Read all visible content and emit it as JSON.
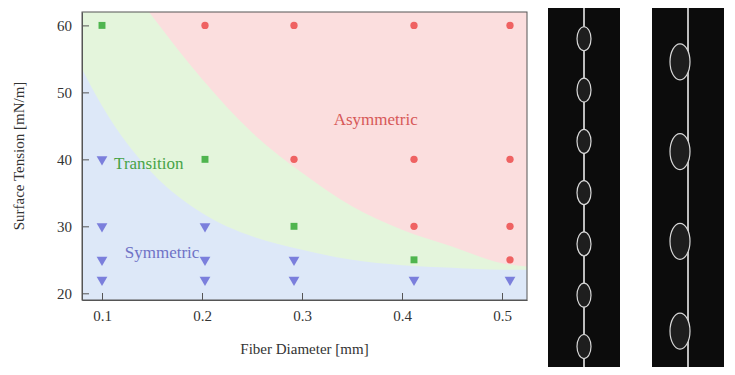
{
  "chart_data": {
    "type": "scatter",
    "x_label": "Fiber Diameter [mm]",
    "y_label": "Surface Tension [mN/m]",
    "xlim": [
      0.08,
      0.525
    ],
    "ylim": [
      19,
      62
    ],
    "xticks": [
      0.1,
      0.2,
      0.3,
      0.4,
      0.5
    ],
    "yticks": [
      20,
      30,
      40,
      50,
      60
    ],
    "series": [
      {
        "name": "Symmetric",
        "color": "#7b7fdc",
        "marker": "triangle-down",
        "x": [
          0.1,
          0.1,
          0.1,
          0.1,
          0.203,
          0.203,
          0.203,
          0.292,
          0.292,
          0.412,
          0.508
        ],
        "values": [
          40,
          30,
          25,
          22,
          30,
          25,
          22,
          25,
          22,
          22,
          22
        ]
      },
      {
        "name": "Transition",
        "color": "#4fb54f",
        "marker": "square",
        "x": [
          0.1,
          0.203,
          0.292,
          0.412
        ],
        "values": [
          60,
          40,
          30,
          25
        ]
      },
      {
        "name": "Asymmetric",
        "color": "#ef6262",
        "marker": "circle",
        "x": [
          0.203,
          0.292,
          0.292,
          0.412,
          0.412,
          0.412,
          0.508,
          0.508,
          0.508,
          0.508
        ],
        "values": [
          60,
          60,
          40,
          60,
          40,
          30,
          60,
          40,
          30,
          25
        ]
      }
    ],
    "boundaries": [
      {
        "x": [
          0.08,
          0.1,
          0.15,
          0.2,
          0.25,
          0.3,
          0.35,
          0.4,
          0.45,
          0.5,
          0.525
        ],
        "y": [
          53.5,
          48,
          38,
          32,
          28.5,
          26.5,
          25,
          24.2,
          23.8,
          23.5,
          23.5
        ]
      },
      {
        "x": [
          0.147,
          0.2,
          0.25,
          0.3,
          0.35,
          0.4,
          0.45,
          0.5,
          0.525
        ],
        "y": [
          62,
          52,
          44,
          38,
          33,
          29.5,
          27,
          24.5,
          24
        ]
      }
    ]
  }
}
